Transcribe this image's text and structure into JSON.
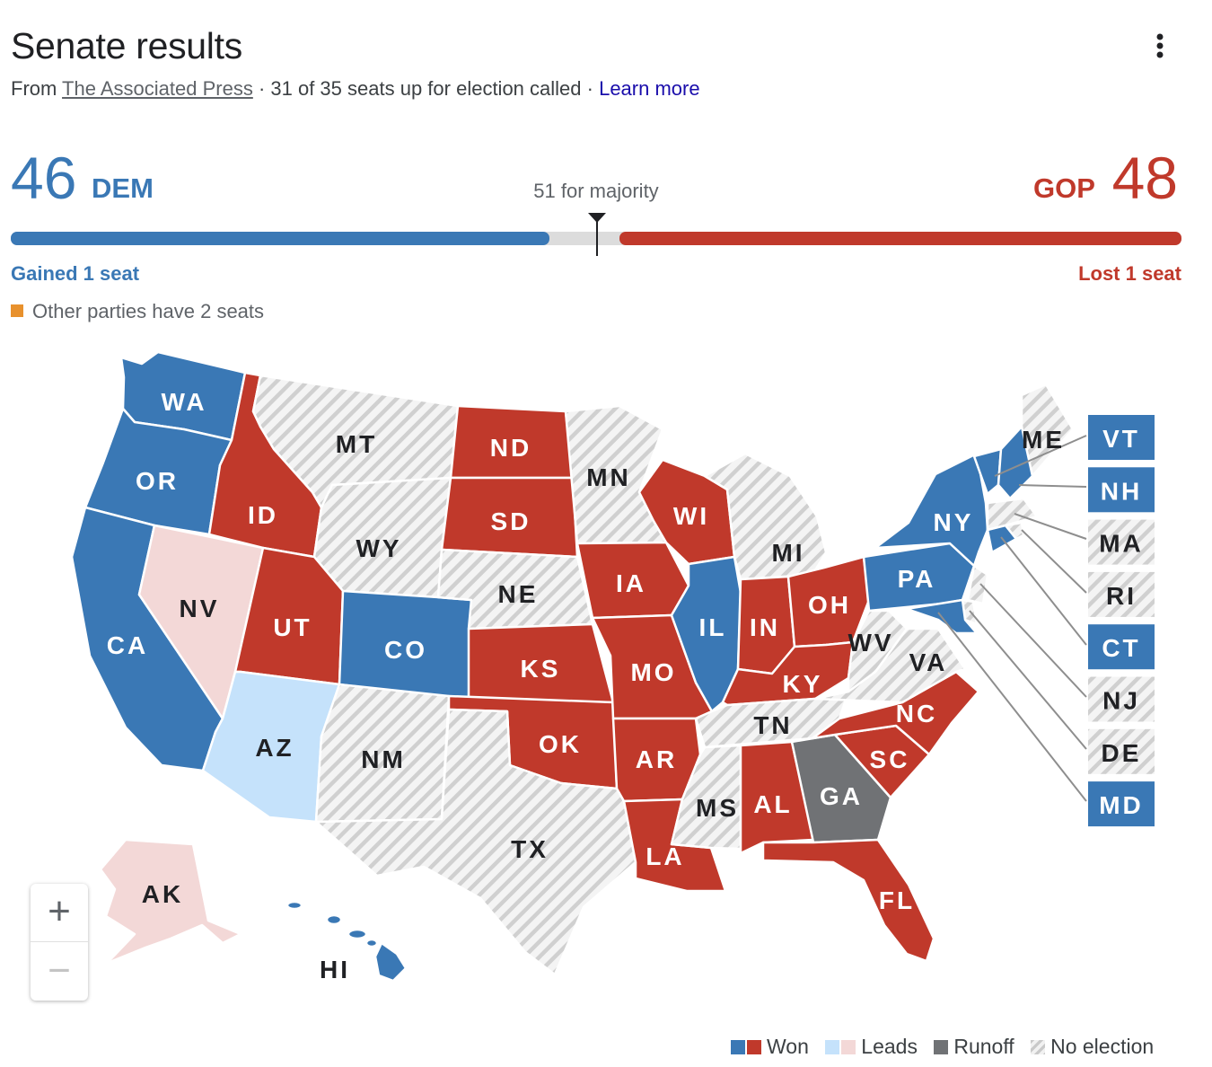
{
  "header": {
    "title": "Senate results",
    "from_label": "From",
    "source": "The Associated Press",
    "called_text": "· 31 of 35 seats up for election called ·",
    "learn_more": "Learn more"
  },
  "tally": {
    "dem_seats": "46",
    "dem_label": "DEM",
    "gop_label": "GOP",
    "gop_seats": "48",
    "majority_text": "51 for majority",
    "dem_change": "Gained 1 seat",
    "gop_change": "Lost 1 seat",
    "other_parties": "Other parties have 2 seats"
  },
  "colors": {
    "dem_won": "#3a78b5",
    "gop_won": "#c0392b",
    "dem_leads": "#c5e2fb",
    "gop_leads": "#f3d8d7",
    "runoff": "#707275",
    "other_party": "#e8912d"
  },
  "states": {
    "WA": "WA",
    "OR": "OR",
    "CA": "CA",
    "NV": "NV",
    "ID": "ID",
    "MT": "MT",
    "WY": "WY",
    "UT": "UT",
    "AZ": "AZ",
    "CO": "CO",
    "NM": "NM",
    "ND": "ND",
    "SD": "SD",
    "NE": "NE",
    "KS": "KS",
    "OK": "OK",
    "TX": "TX",
    "MN": "MN",
    "IA": "IA",
    "MO": "MO",
    "AR": "AR",
    "LA": "LA",
    "WI": "WI",
    "IL": "IL",
    "MI": "MI",
    "IN": "IN",
    "OH": "OH",
    "KY": "KY",
    "TN": "TN",
    "MS": "MS",
    "AL": "AL",
    "GA": "GA",
    "FL": "FL",
    "SC": "SC",
    "NC": "NC",
    "VA": "VA",
    "WV": "WV",
    "PA": "PA",
    "NY": "NY",
    "ME": "ME",
    "AK": "AK",
    "HI": "HI"
  },
  "small_states": [
    {
      "code": "VT",
      "status": "dem_won"
    },
    {
      "code": "NH",
      "status": "dem_won"
    },
    {
      "code": "MA",
      "status": "no_election"
    },
    {
      "code": "RI",
      "status": "no_election"
    },
    {
      "code": "CT",
      "status": "dem_won"
    },
    {
      "code": "NJ",
      "status": "no_election"
    },
    {
      "code": "DE",
      "status": "no_election"
    },
    {
      "code": "MD",
      "status": "dem_won"
    }
  ],
  "zoom": {
    "in_label": "+",
    "out_label": "−"
  },
  "legend": {
    "won": "Won",
    "leads": "Leads",
    "runoff": "Runoff",
    "no_election": "No election"
  }
}
